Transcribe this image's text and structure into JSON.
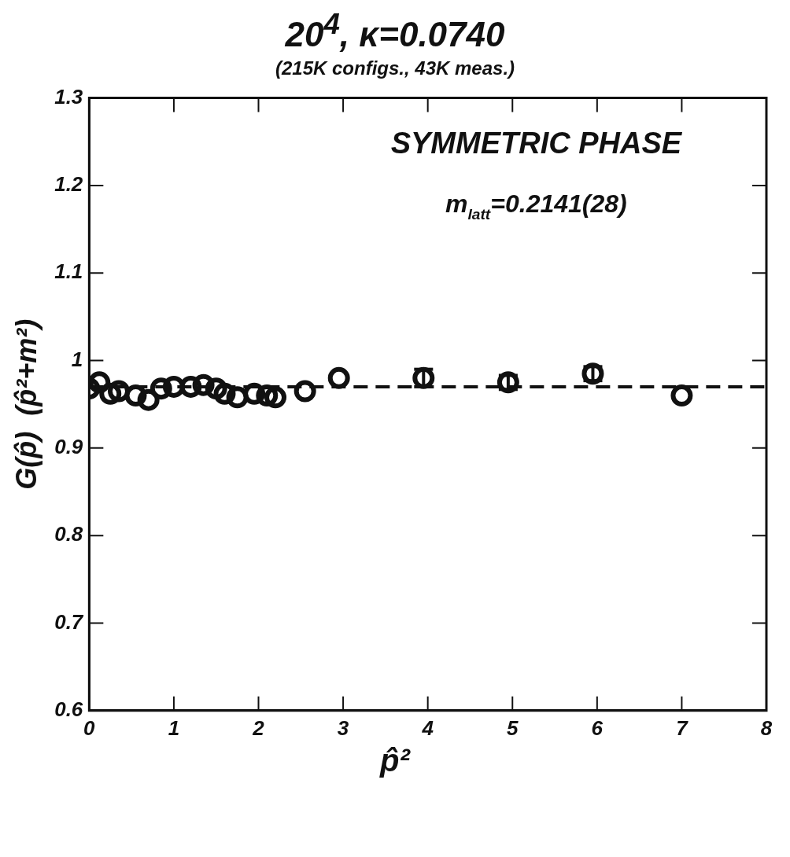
{
  "chart_data": {
    "type": "scatter",
    "title": "20$^{4}$, κ=0.0740",
    "subtitle": "(215K configs., 43K meas.)",
    "xlabel": "p̂²",
    "ylabel": "G(p̂)  (p̂²+m²)",
    "annotations": [
      "SYMMETRIC PHASE",
      "m$_{latt}$=0.2141(28)"
    ],
    "x": [
      0.0,
      0.12,
      0.25,
      0.35,
      0.55,
      0.7,
      0.85,
      1.0,
      1.2,
      1.35,
      1.5,
      1.6,
      1.75,
      1.95,
      2.1,
      2.2,
      2.55,
      2.95,
      3.95,
      4.95,
      5.95,
      7.0
    ],
    "series": [
      {
        "color": "#111111",
        "values": [
          0.968,
          0.975,
          0.962,
          0.965,
          0.96,
          0.955,
          0.968,
          0.97,
          0.97,
          0.972,
          0.968,
          0.962,
          0.958,
          0.962,
          0.96,
          0.958,
          0.965,
          0.98,
          0.98,
          0.975,
          0.985,
          0.96
        ],
        "errors": [
          null,
          null,
          null,
          null,
          null,
          null,
          null,
          null,
          null,
          null,
          null,
          null,
          null,
          null,
          null,
          null,
          null,
          null,
          0.01,
          0.008,
          0.008,
          null
        ]
      }
    ],
    "marker": "circle",
    "grid": false,
    "legend": false,
    "ref_lines": [
      {
        "axis": "y",
        "value": 0.97,
        "color": "#111111",
        "line_style": "dashed"
      }
    ],
    "xlim": [
      0,
      8
    ],
    "xticks": [
      0,
      1,
      2,
      3,
      4,
      5,
      6,
      7,
      8
    ],
    "ylim": [
      0.6,
      1.3
    ],
    "yticks": [
      0.6,
      0.7,
      0.8,
      0.9,
      1,
      1.1,
      1.2,
      1.3
    ]
  }
}
